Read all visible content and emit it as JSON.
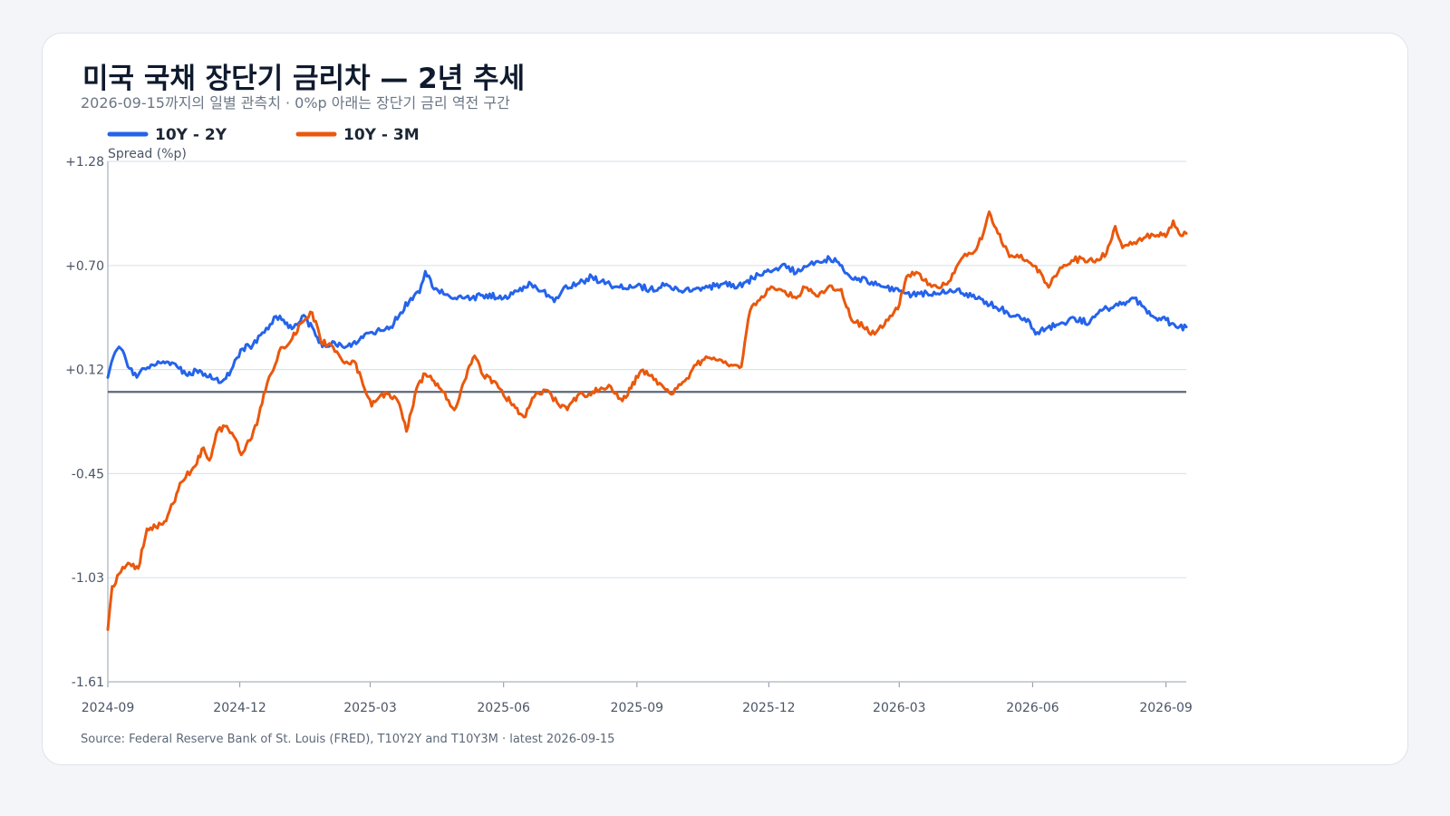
{
  "chart_data": {
    "type": "line",
    "title": "미국 국채 장단기 금리차 — 2년 추세",
    "subtitle": "2026-09-15까지의 일별 관측치 · 0%p 아래는 장단기 금리 역전 구간",
    "ylabel": "Spread (%p)",
    "xlabel": "",
    "source": "Source: Federal Reserve Bank of St. Louis (FRED), T10Y2Y and T10Y3M · latest 2026-09-15",
    "x_range": [
      "2024-09-01",
      "2026-09-15"
    ],
    "ylim": [
      -1.61,
      1.28
    ],
    "y_ticks": [
      "+1.28",
      "+0.70",
      "+0.12",
      "-0.45",
      "-1.03",
      "-1.61"
    ],
    "x_ticks": [
      {
        "date": "2024-09-01",
        "label": "2024-09"
      },
      {
        "date": "2024-12-01",
        "label": "2024-12"
      },
      {
        "date": "2025-03-01",
        "label": "2025-03"
      },
      {
        "date": "2025-06-01",
        "label": "2025-06"
      },
      {
        "date": "2025-09-01",
        "label": "2025-09"
      },
      {
        "date": "2025-12-01",
        "label": "2025-12"
      },
      {
        "date": "2026-03-01",
        "label": "2026-03"
      },
      {
        "date": "2026-06-01",
        "label": "2026-06"
      },
      {
        "date": "2026-09-01",
        "label": "2026-09"
      }
    ],
    "zero_line": 0,
    "grid": "horizontal",
    "legend_position": "top-left",
    "series": [
      {
        "name": "10Y - 2Y",
        "color": "#2563eb",
        "points": [
          [
            "2024-09-01",
            0.08
          ],
          [
            "2024-09-06",
            0.22
          ],
          [
            "2024-09-10",
            0.24
          ],
          [
            "2024-09-16",
            0.13
          ],
          [
            "2024-09-21",
            0.08
          ],
          [
            "2024-09-26",
            0.13
          ],
          [
            "2024-10-02",
            0.15
          ],
          [
            "2024-10-08",
            0.16
          ],
          [
            "2024-10-14",
            0.15
          ],
          [
            "2024-10-20",
            0.13
          ],
          [
            "2024-10-26",
            0.09
          ],
          [
            "2024-11-01",
            0.12
          ],
          [
            "2024-11-07",
            0.1
          ],
          [
            "2024-11-13",
            0.07
          ],
          [
            "2024-11-19",
            0.06
          ],
          [
            "2024-11-25",
            0.12
          ],
          [
            "2024-12-03",
            0.24
          ],
          [
            "2024-12-10",
            0.26
          ],
          [
            "2024-12-18",
            0.33
          ],
          [
            "2024-12-26",
            0.42
          ],
          [
            "2024-12-30",
            0.4
          ],
          [
            "2025-01-06",
            0.35
          ],
          [
            "2025-01-13",
            0.42
          ],
          [
            "2025-01-20",
            0.36
          ],
          [
            "2025-01-27",
            0.25
          ],
          [
            "2025-02-03",
            0.28
          ],
          [
            "2025-02-10",
            0.25
          ],
          [
            "2025-02-17",
            0.27
          ],
          [
            "2025-02-24",
            0.3
          ],
          [
            "2025-03-01",
            0.33
          ],
          [
            "2025-03-08",
            0.34
          ],
          [
            "2025-03-15",
            0.36
          ],
          [
            "2025-03-22",
            0.44
          ],
          [
            "2025-03-29",
            0.52
          ],
          [
            "2025-04-04",
            0.55
          ],
          [
            "2025-04-08",
            0.67
          ],
          [
            "2025-04-14",
            0.57
          ],
          [
            "2025-04-22",
            0.54
          ],
          [
            "2025-05-01",
            0.53
          ],
          [
            "2025-05-10",
            0.52
          ],
          [
            "2025-05-20",
            0.54
          ],
          [
            "2025-06-01",
            0.52
          ],
          [
            "2025-06-10",
            0.56
          ],
          [
            "2025-06-20",
            0.6
          ],
          [
            "2025-06-28",
            0.56
          ],
          [
            "2025-07-06",
            0.5
          ],
          [
            "2025-07-14",
            0.59
          ],
          [
            "2025-07-22",
            0.6
          ],
          [
            "2025-08-01",
            0.64
          ],
          [
            "2025-08-10",
            0.6
          ],
          [
            "2025-08-20",
            0.58
          ],
          [
            "2025-09-01",
            0.59
          ],
          [
            "2025-09-10",
            0.57
          ],
          [
            "2025-09-20",
            0.59
          ],
          [
            "2025-09-30",
            0.56
          ],
          [
            "2025-10-10",
            0.57
          ],
          [
            "2025-10-20",
            0.58
          ],
          [
            "2025-10-30",
            0.6
          ],
          [
            "2025-11-10",
            0.59
          ],
          [
            "2025-11-20",
            0.63
          ],
          [
            "2025-11-28",
            0.67
          ],
          [
            "2025-12-05",
            0.68
          ],
          [
            "2025-12-12",
            0.71
          ],
          [
            "2025-12-20",
            0.66
          ],
          [
            "2025-12-28",
            0.7
          ],
          [
            "2026-01-05",
            0.72
          ],
          [
            "2026-01-12",
            0.74
          ],
          [
            "2026-01-18",
            0.72
          ],
          [
            "2026-01-25",
            0.65
          ],
          [
            "2026-02-01",
            0.63
          ],
          [
            "2026-02-10",
            0.61
          ],
          [
            "2026-02-20",
            0.58
          ],
          [
            "2026-03-01",
            0.56
          ],
          [
            "2026-03-10",
            0.54
          ],
          [
            "2026-03-20",
            0.55
          ],
          [
            "2026-03-30",
            0.55
          ],
          [
            "2026-04-10",
            0.57
          ],
          [
            "2026-04-20",
            0.53
          ],
          [
            "2026-04-30",
            0.5
          ],
          [
            "2026-05-10",
            0.46
          ],
          [
            "2026-05-20",
            0.42
          ],
          [
            "2026-05-30",
            0.39
          ],
          [
            "2026-06-03",
            0.32
          ],
          [
            "2026-06-10",
            0.35
          ],
          [
            "2026-06-20",
            0.38
          ],
          [
            "2026-06-30",
            0.41
          ],
          [
            "2026-07-10",
            0.38
          ],
          [
            "2026-07-20",
            0.46
          ],
          [
            "2026-07-30",
            0.48
          ],
          [
            "2026-08-05",
            0.5
          ],
          [
            "2026-08-10",
            0.52
          ],
          [
            "2026-08-18",
            0.46
          ],
          [
            "2026-08-25",
            0.41
          ],
          [
            "2026-09-01",
            0.4
          ],
          [
            "2026-09-08",
            0.36
          ],
          [
            "2026-09-15",
            0.36
          ]
        ]
      },
      {
        "name": "10Y - 3M",
        "color": "#ea580c",
        "points": [
          [
            "2024-09-01",
            -1.32
          ],
          [
            "2024-09-04",
            -1.08
          ],
          [
            "2024-09-10",
            -1.0
          ],
          [
            "2024-09-15",
            -0.95
          ],
          [
            "2024-09-22",
            -0.98
          ],
          [
            "2024-09-28",
            -0.76
          ],
          [
            "2024-10-04",
            -0.75
          ],
          [
            "2024-10-10",
            -0.72
          ],
          [
            "2024-10-16",
            -0.62
          ],
          [
            "2024-10-22",
            -0.5
          ],
          [
            "2024-10-30",
            -0.42
          ],
          [
            "2024-11-06",
            -0.31
          ],
          [
            "2024-11-10",
            -0.38
          ],
          [
            "2024-11-16",
            -0.21
          ],
          [
            "2024-11-22",
            -0.19
          ],
          [
            "2024-11-28",
            -0.26
          ],
          [
            "2024-12-02",
            -0.35
          ],
          [
            "2024-12-08",
            -0.27
          ],
          [
            "2024-12-14",
            -0.14
          ],
          [
            "2024-12-20",
            0.05
          ],
          [
            "2024-12-28",
            0.22
          ],
          [
            "2025-01-05",
            0.28
          ],
          [
            "2025-01-12",
            0.38
          ],
          [
            "2025-01-20",
            0.44
          ],
          [
            "2025-01-26",
            0.28
          ],
          [
            "2025-02-02",
            0.26
          ],
          [
            "2025-02-10",
            0.17
          ],
          [
            "2025-02-18",
            0.17
          ],
          [
            "2025-02-24",
            0.04
          ],
          [
            "2025-03-02",
            -0.08
          ],
          [
            "2025-03-08",
            -0.02
          ],
          [
            "2025-03-14",
            -0.01
          ],
          [
            "2025-03-20",
            -0.05
          ],
          [
            "2025-03-26",
            -0.22
          ],
          [
            "2025-04-02",
            0.02
          ],
          [
            "2025-04-08",
            0.1
          ],
          [
            "2025-04-14",
            0.06
          ],
          [
            "2025-04-20",
            0.0
          ],
          [
            "2025-04-28",
            -0.1
          ],
          [
            "2025-05-05",
            0.06
          ],
          [
            "2025-05-12",
            0.2
          ],
          [
            "2025-05-18",
            0.09
          ],
          [
            "2025-05-25",
            0.06
          ],
          [
            "2025-06-01",
            -0.02
          ],
          [
            "2025-06-08",
            -0.07
          ],
          [
            "2025-06-15",
            -0.14
          ],
          [
            "2025-06-22",
            -0.03
          ],
          [
            "2025-06-30",
            0.01
          ],
          [
            "2025-07-08",
            -0.06
          ],
          [
            "2025-07-15",
            -0.1
          ],
          [
            "2025-07-22",
            -0.02
          ],
          [
            "2025-07-30",
            -0.01
          ],
          [
            "2025-08-06",
            0.01
          ],
          [
            "2025-08-14",
            0.03
          ],
          [
            "2025-08-22",
            -0.05
          ],
          [
            "2025-08-28",
            0.02
          ],
          [
            "2025-09-04",
            0.12
          ],
          [
            "2025-09-10",
            0.09
          ],
          [
            "2025-09-18",
            0.04
          ],
          [
            "2025-09-26",
            -0.01
          ],
          [
            "2025-10-04",
            0.06
          ],
          [
            "2025-10-12",
            0.15
          ],
          [
            "2025-10-20",
            0.19
          ],
          [
            "2025-10-28",
            0.18
          ],
          [
            "2025-11-05",
            0.15
          ],
          [
            "2025-11-12",
            0.14
          ],
          [
            "2025-11-18",
            0.45
          ],
          [
            "2025-11-26",
            0.53
          ],
          [
            "2025-12-04",
            0.58
          ],
          [
            "2025-12-12",
            0.56
          ],
          [
            "2025-12-20",
            0.52
          ],
          [
            "2025-12-26",
            0.58
          ],
          [
            "2026-01-04",
            0.53
          ],
          [
            "2026-01-12",
            0.59
          ],
          [
            "2026-01-20",
            0.57
          ],
          [
            "2026-01-26",
            0.42
          ],
          [
            "2026-02-04",
            0.36
          ],
          [
            "2026-02-12",
            0.32
          ],
          [
            "2026-02-20",
            0.4
          ],
          [
            "2026-02-28",
            0.46
          ],
          [
            "2026-03-06",
            0.64
          ],
          [
            "2026-03-14",
            0.66
          ],
          [
            "2026-03-22",
            0.6
          ],
          [
            "2026-03-30",
            0.58
          ],
          [
            "2026-04-08",
            0.66
          ],
          [
            "2026-04-14",
            0.75
          ],
          [
            "2026-04-22",
            0.78
          ],
          [
            "2026-04-28",
            0.88
          ],
          [
            "2026-05-02",
            1.0
          ],
          [
            "2026-05-08",
            0.88
          ],
          [
            "2026-05-16",
            0.75
          ],
          [
            "2026-05-24",
            0.76
          ],
          [
            "2026-06-01",
            0.7
          ],
          [
            "2026-06-08",
            0.64
          ],
          [
            "2026-06-12",
            0.58
          ],
          [
            "2026-06-20",
            0.69
          ],
          [
            "2026-06-28",
            0.73
          ],
          [
            "2026-07-06",
            0.74
          ],
          [
            "2026-07-14",
            0.72
          ],
          [
            "2026-07-22",
            0.77
          ],
          [
            "2026-07-28",
            0.92
          ],
          [
            "2026-08-02",
            0.8
          ],
          [
            "2026-08-10",
            0.83
          ],
          [
            "2026-08-18",
            0.86
          ],
          [
            "2026-08-26",
            0.87
          ],
          [
            "2026-09-02",
            0.88
          ],
          [
            "2026-09-06",
            0.95
          ],
          [
            "2026-09-10",
            0.88
          ],
          [
            "2026-09-15",
            0.88
          ]
        ]
      }
    ]
  }
}
